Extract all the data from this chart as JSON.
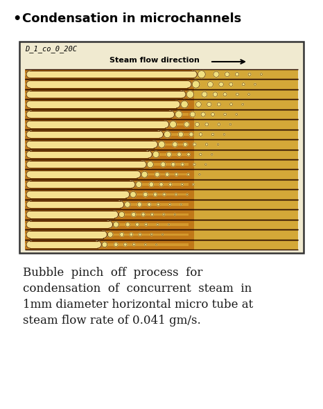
{
  "title": "Condensation in microchannels",
  "title_fontsize": 13,
  "fig_bg": "#ffffff",
  "box_label": "D_1_co_0_20C",
  "arrow_label": "Steam flow direction",
  "caption_lines": [
    "Bubble  pinch  off  process  for",
    "condensation  of  concurrent  steam  in",
    "1mm diameter horizontal micro tube at",
    "steam flow rate of 0.041 gm/s."
  ],
  "caption_fontsize": 12,
  "num_channels": 18,
  "img_bg": "#c8820a",
  "channel_dark_border": "#3a1a00",
  "channel_fill": "#b87010",
  "slug_fill": "#f5e090",
  "slug_outline": "#5a2800",
  "bubble_fill": "#f0e080",
  "bubble_outline": "#5a2800",
  "right_bg": "#e8c850",
  "box_outer_bg": "#f0ead0"
}
